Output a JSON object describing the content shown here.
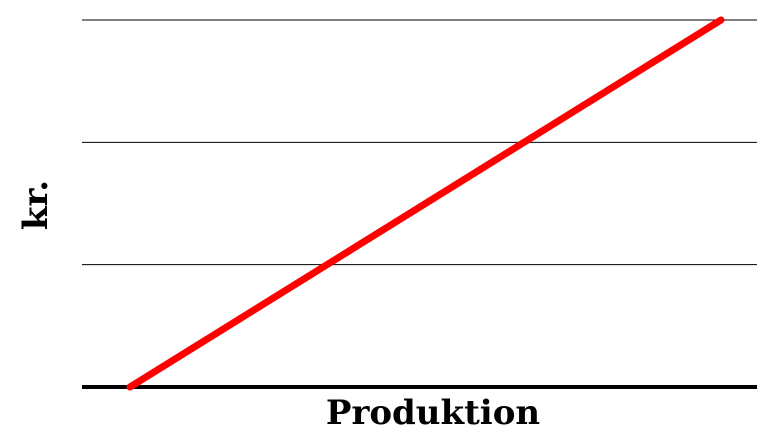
{
  "chart_data": {
    "type": "line",
    "title": "",
    "xlabel": "Produktion",
    "ylabel": "kr.",
    "grid": true,
    "legend": "none",
    "xlim": [
      0,
      1
    ],
    "ylim": [
      0,
      3
    ],
    "gridlines_y": [
      1,
      2,
      3
    ],
    "series": [
      {
        "color": "#ff0000",
        "points": [
          {
            "x": 0.07,
            "y": 0.0
          },
          {
            "x": 1.0,
            "y": 3.0
          }
        ]
      }
    ]
  },
  "colors": {
    "background": "#ffffff",
    "grid": "#000000",
    "axis": "#000000",
    "line": "#ff0000"
  }
}
